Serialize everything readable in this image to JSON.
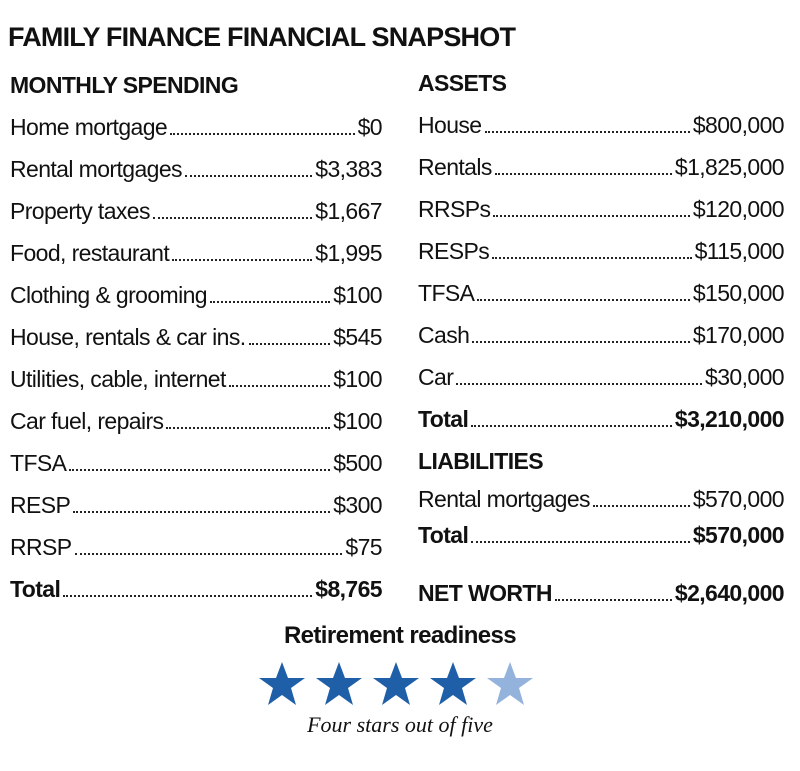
{
  "title": "FAMILY FINANCE FINANCIAL SNAPSHOT",
  "spending": {
    "heading": "MONTHLY SPENDING",
    "rows": [
      {
        "label": "Home mortgage",
        "amount": "$0"
      },
      {
        "label": "Rental mortgages",
        "amount": "$3,383"
      },
      {
        "label": "Property taxes",
        "amount": "$1,667"
      },
      {
        "label": "Food, restaurant",
        "amount": "$1,995"
      },
      {
        "label": "Clothing & grooming",
        "amount": "$100"
      },
      {
        "label": "House, rentals & car ins.",
        "amount": "$545"
      },
      {
        "label": "Utilities, cable, internet",
        "amount": "$100"
      },
      {
        "label": "Car fuel, repairs",
        "amount": "$100"
      },
      {
        "label": "TFSA",
        "amount": "$500"
      },
      {
        "label": "RESP",
        "amount": "$300"
      },
      {
        "label": "RRSP",
        "amount": "$75"
      }
    ],
    "total": {
      "label": "Total",
      "amount": "$8,765"
    }
  },
  "assets": {
    "heading": "ASSETS",
    "rows": [
      {
        "label": "House",
        "amount": "$800,000"
      },
      {
        "label": "Rentals",
        "amount": "$1,825,000"
      },
      {
        "label": "RRSPs",
        "amount": "$120,000"
      },
      {
        "label": "RESPs",
        "amount": "$115,000"
      },
      {
        "label": "TFSA",
        "amount": "$150,000"
      },
      {
        "label": "Cash",
        "amount": "$170,000"
      },
      {
        "label": "Car",
        "amount": "$30,000"
      }
    ],
    "total": {
      "label": "Total",
      "amount": "$3,210,000"
    }
  },
  "liabilities": {
    "heading": "LIABILITIES",
    "rows": [
      {
        "label": "Rental mortgages",
        "amount": "$570,000"
      }
    ],
    "total": {
      "label": "Total",
      "amount": "$570,000"
    }
  },
  "net_worth": {
    "label": "NET WORTH",
    "amount": "$2,640,000"
  },
  "retirement": {
    "heading": "Retirement readiness",
    "caption": "Four stars out of five"
  }
}
